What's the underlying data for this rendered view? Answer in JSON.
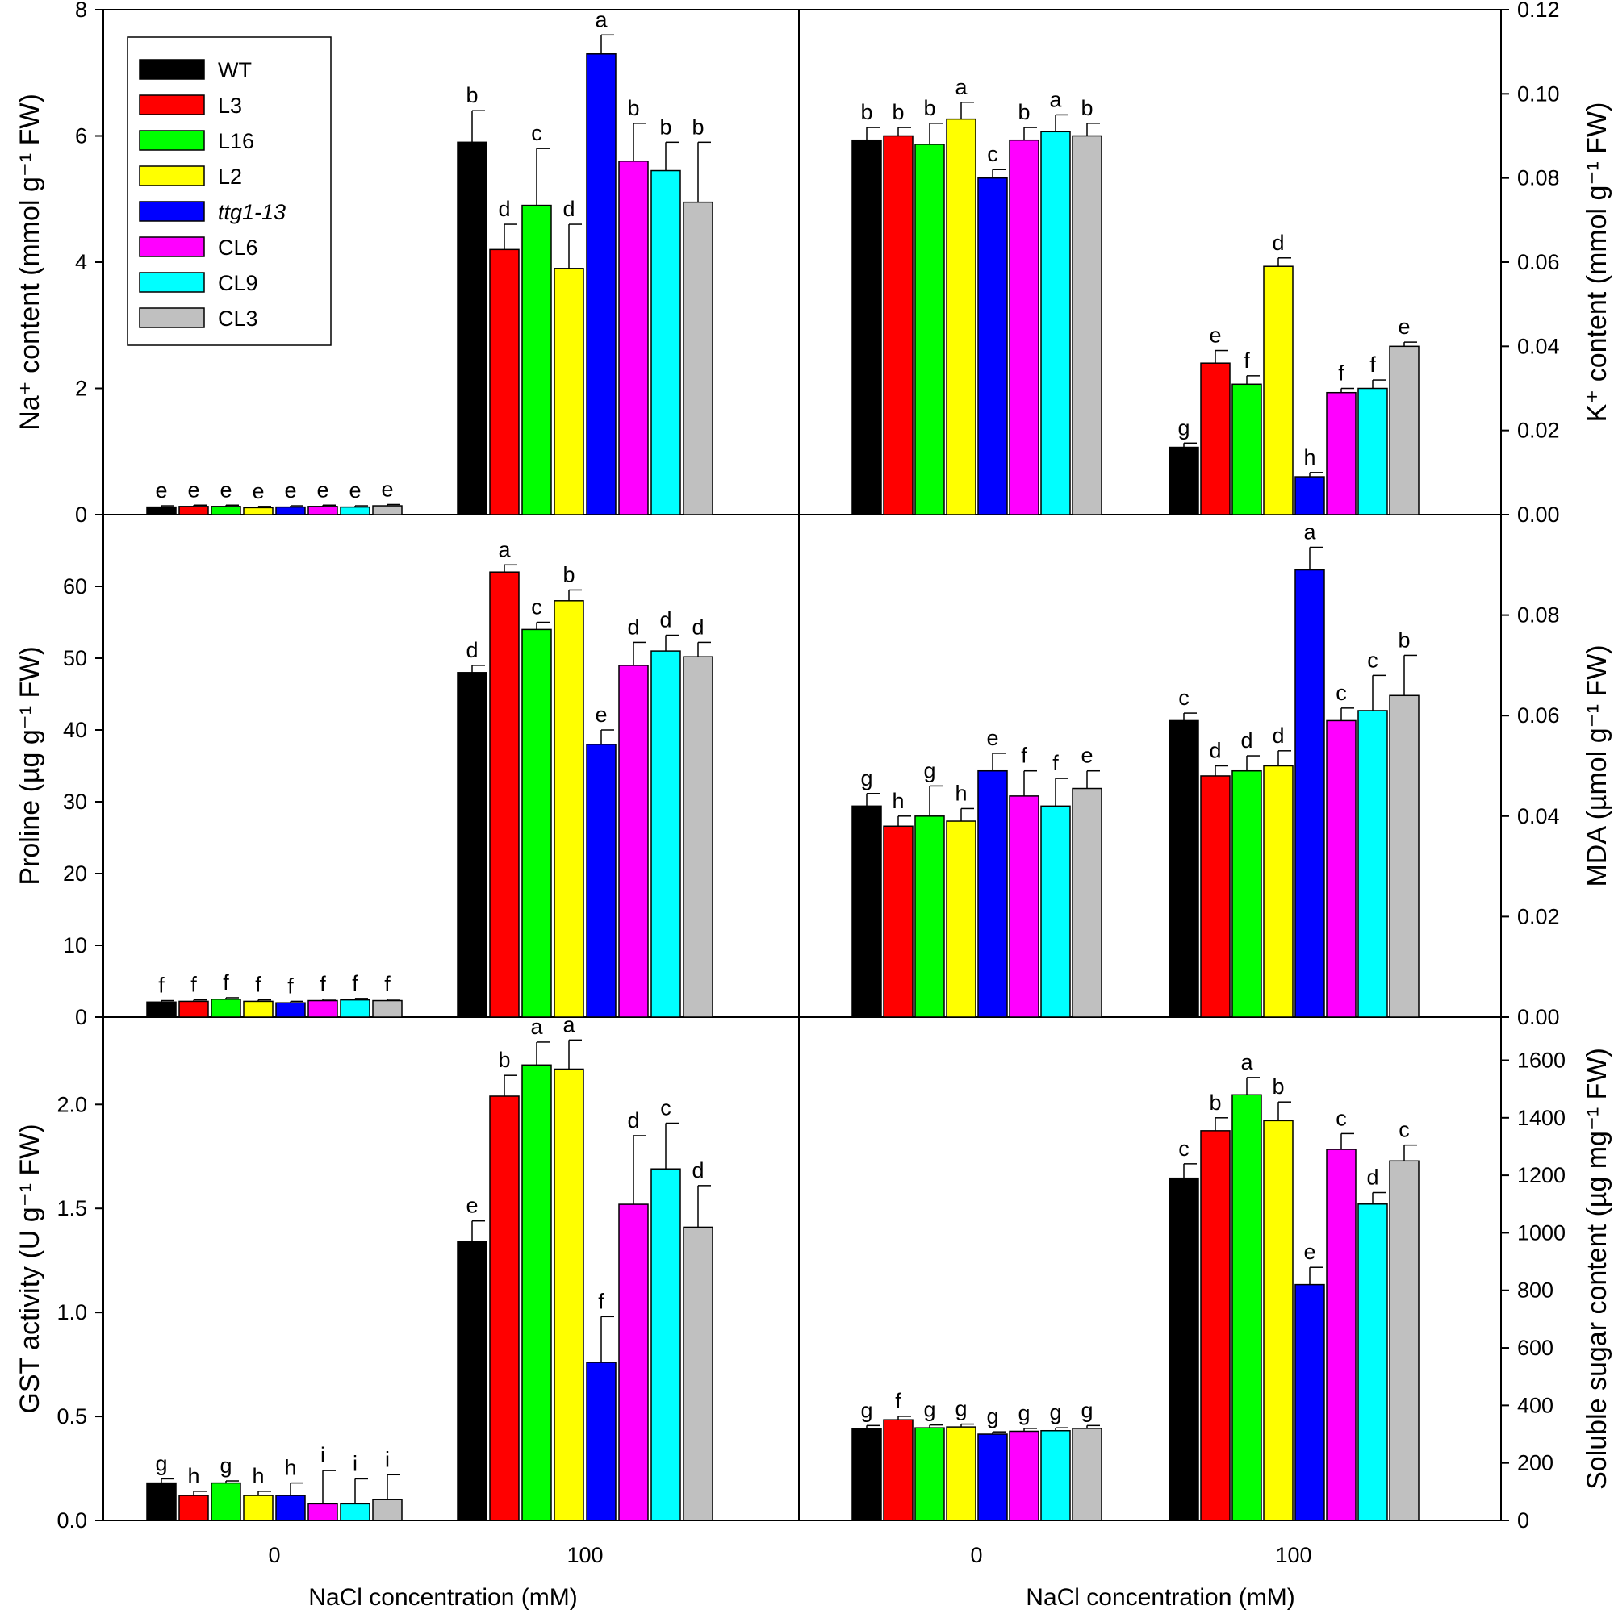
{
  "chart_data": {
    "type": "bar",
    "x_title": "NaCl concentration (mM)",
    "categories": [
      "0",
      "100"
    ],
    "series_names": [
      "WT",
      "L3",
      "L16",
      "L2",
      "ttg1-13",
      "CL6",
      "CL9",
      "CL3"
    ],
    "italic_series": [
      "ttg1-13"
    ],
    "colors": [
      "#000000",
      "#ff0000",
      "#00ff00",
      "#ffff00",
      "#0000ff",
      "#ff00ff",
      "#00ffff",
      "#c0c0c0"
    ],
    "panels": [
      {
        "id": "na",
        "ylabel": "Na⁺ content (mmol g⁻¹ FW)",
        "ylim": [
          0,
          8
        ],
        "ticks": [
          0,
          2,
          4,
          6,
          8
        ],
        "tick_labels": [
          "0",
          "2",
          "4",
          "6",
          "8"
        ],
        "values": [
          [
            0.12,
            0.13,
            0.13,
            0.11,
            0.12,
            0.13,
            0.12,
            0.14
          ],
          [
            5.9,
            4.2,
            4.9,
            3.9,
            7.3,
            5.6,
            5.45,
            4.95
          ]
        ],
        "errors": [
          [
            0.02,
            0.02,
            0.02,
            0.02,
            0.02,
            0.02,
            0.02,
            0.02
          ],
          [
            0.5,
            0.4,
            0.9,
            0.7,
            0.3,
            0.6,
            0.45,
            0.95
          ]
        ],
        "letters": [
          [
            "e",
            "e",
            "e",
            "e",
            "e",
            "e",
            "e",
            "e"
          ],
          [
            "b",
            "d",
            "c",
            "d",
            "a",
            "b",
            "b",
            "b"
          ]
        ]
      },
      {
        "id": "k",
        "ylabel": "K⁺ content (mmol g⁻¹ FW)",
        "ylim": [
          0,
          0.12
        ],
        "ticks": [
          0,
          0.02,
          0.04,
          0.06,
          0.08,
          0.1,
          0.12
        ],
        "tick_labels": [
          "0.00",
          "0.02",
          "0.04",
          "0.06",
          "0.08",
          "0.10",
          "0.12"
        ],
        "values": [
          [
            0.089,
            0.09,
            0.088,
            0.094,
            0.08,
            0.089,
            0.091,
            0.09
          ],
          [
            0.016,
            0.036,
            0.031,
            0.059,
            0.009,
            0.029,
            0.03,
            0.04
          ]
        ],
        "errors": [
          [
            0.003,
            0.002,
            0.005,
            0.004,
            0.002,
            0.003,
            0.004,
            0.003
          ],
          [
            0.001,
            0.003,
            0.002,
            0.002,
            0.001,
            0.001,
            0.002,
            0.001
          ]
        ],
        "letters": [
          [
            "b",
            "b",
            "b",
            "a",
            "c",
            "b",
            "a",
            "b"
          ],
          [
            "g",
            "e",
            "f",
            "d",
            "h",
            "f",
            "f",
            "e"
          ]
        ]
      },
      {
        "id": "proline",
        "ylabel": "Proline (µg g⁻¹ FW)",
        "ylim": [
          0,
          70
        ],
        "ticks": [
          0,
          10,
          20,
          30,
          40,
          50,
          60
        ],
        "tick_labels": [
          "0",
          "10",
          "20",
          "30",
          "40",
          "50",
          "60"
        ],
        "values": [
          [
            2.1,
            2.2,
            2.5,
            2.2,
            2.0,
            2.3,
            2.4,
            2.3
          ],
          [
            48,
            62,
            54,
            58,
            38,
            49,
            51,
            50.2
          ]
        ],
        "errors": [
          [
            0.2,
            0.2,
            0.2,
            0.2,
            0.2,
            0.2,
            0.2,
            0.2
          ],
          [
            1.0,
            1.0,
            1.0,
            1.5,
            2.0,
            3.2,
            2.2,
            2.0
          ]
        ],
        "letters": [
          [
            "f",
            "f",
            "f",
            "f",
            "f",
            "f",
            "f",
            "f"
          ],
          [
            "d",
            "a",
            "c",
            "b",
            "e",
            "d",
            "d",
            "d"
          ]
        ]
      },
      {
        "id": "mda",
        "ylabel": "MDA (µmol g⁻¹ FW)",
        "ylim": [
          0,
          0.1
        ],
        "ticks": [
          0,
          0.02,
          0.04,
          0.06,
          0.08
        ],
        "tick_labels": [
          "0.00",
          "0.02",
          "0.04",
          "0.06",
          "0.08"
        ],
        "values": [
          [
            0.042,
            0.038,
            0.04,
            0.039,
            0.049,
            0.044,
            0.042,
            0.0455
          ],
          [
            0.059,
            0.048,
            0.049,
            0.05,
            0.089,
            0.059,
            0.061,
            0.064
          ]
        ],
        "errors": [
          [
            0.0025,
            0.002,
            0.006,
            0.0025,
            0.0035,
            0.005,
            0.0055,
            0.0035
          ],
          [
            0.0015,
            0.002,
            0.003,
            0.003,
            0.0045,
            0.0025,
            0.007,
            0.008
          ]
        ],
        "letters": [
          [
            "g",
            "h",
            "g",
            "h",
            "e",
            "f",
            "f",
            "e"
          ],
          [
            "c",
            "d",
            "d",
            "d",
            "a",
            "c",
            "c",
            "b"
          ]
        ]
      },
      {
        "id": "gst",
        "ylabel": "GST activity (U g⁻¹ FW)",
        "ylim": [
          0,
          2.42
        ],
        "ticks": [
          0,
          0.5,
          1.0,
          1.5,
          2.0
        ],
        "tick_labels": [
          "0.0",
          "0.5",
          "1.0",
          "1.5",
          "2.0"
        ],
        "values": [
          [
            0.18,
            0.12,
            0.18,
            0.12,
            0.12,
            0.08,
            0.08,
            0.1
          ],
          [
            1.34,
            2.04,
            2.19,
            2.17,
            0.76,
            1.52,
            1.69,
            1.41
          ]
        ],
        "errors": [
          [
            0.02,
            0.02,
            0.01,
            0.02,
            0.06,
            0.16,
            0.12,
            0.12
          ],
          [
            0.1,
            0.1,
            0.11,
            0.14,
            0.22,
            0.33,
            0.22,
            0.2
          ]
        ],
        "letters": [
          [
            "g",
            "h",
            "g",
            "h",
            "h",
            "i",
            "i",
            "i"
          ],
          [
            "e",
            "b",
            "a",
            "a",
            "f",
            "d",
            "c",
            "d"
          ]
        ]
      },
      {
        "id": "sugar",
        "ylabel": "Soluble sugar content (µg mg⁻¹ FW)",
        "ylim": [
          0,
          1750
        ],
        "ticks": [
          0,
          200,
          400,
          600,
          800,
          1000,
          1200,
          1400,
          1600
        ],
        "tick_labels": [
          "0",
          "200",
          "400",
          "600",
          "800",
          "1000",
          "1200",
          "1400",
          "1600"
        ],
        "values": [
          [
            320,
            350,
            322,
            325,
            300,
            310,
            312,
            320
          ],
          [
            1190,
            1355,
            1480,
            1390,
            820,
            1290,
            1100,
            1250
          ]
        ],
        "errors": [
          [
            10,
            12,
            10,
            10,
            8,
            10,
            10,
            10
          ],
          [
            50,
            45,
            60,
            65,
            60,
            55,
            40,
            55
          ]
        ],
        "letters": [
          [
            "g",
            "f",
            "g",
            "g",
            "g",
            "g",
            "g",
            "g"
          ],
          [
            "c",
            "b",
            "a",
            "b",
            "e",
            "c",
            "d",
            "c"
          ]
        ]
      }
    ]
  }
}
